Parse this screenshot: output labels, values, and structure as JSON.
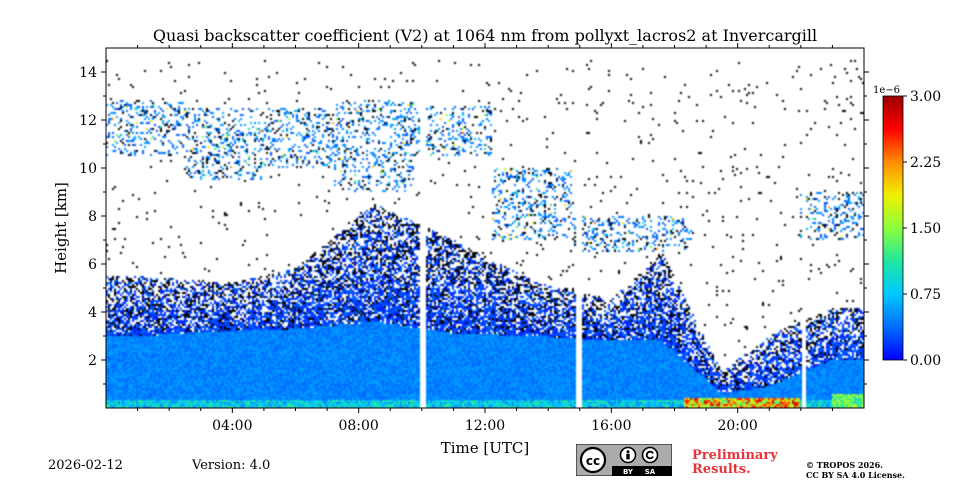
{
  "chart_data": {
    "type": "heatmap",
    "title": "Quasi backscatter coefficient (V2) at 1064 nm from pollyxt_lacros2 at Invercargill",
    "xlabel": "Time [UTC]",
    "ylabel": "Height [km]",
    "xlim": [
      0,
      24
    ],
    "ylim": [
      0,
      15
    ],
    "x_ticks": [
      4,
      8,
      12,
      16,
      20
    ],
    "x_tick_labels": [
      "04:00",
      "08:00",
      "12:00",
      "16:00",
      "20:00"
    ],
    "y_ticks": [
      2,
      4,
      6,
      8,
      10,
      12,
      14
    ],
    "y_tick_labels": [
      "2",
      "4",
      "6",
      "8",
      "10",
      "12",
      "14"
    ],
    "colorbar": {
      "vmin": 0.0,
      "vmax": 3.0,
      "exponent_label": "1e−6",
      "ticks": [
        0.0,
        0.75,
        1.5,
        2.25,
        3.0
      ],
      "tick_labels": [
        "0.00",
        "0.75",
        "1.50",
        "2.25",
        "3.00"
      ],
      "colors": [
        "#0000ff",
        "#006cff",
        "#00c8ff",
        "#22e6a0",
        "#8cff3c",
        "#f0f000",
        "#ff8c00",
        "#ff0000",
        "#990000"
      ]
    },
    "data_gaps_utc": [
      10.05,
      15.0,
      22.1
    ],
    "profile_summary": [
      {
        "time": 1,
        "boundary_layer_top_km": 3.0,
        "signal_top_km": 5.5,
        "cirrus_km": [
          10.5,
          12.8
        ]
      },
      {
        "time": 4,
        "boundary_layer_top_km": 3.2,
        "signal_top_km": 5.2,
        "cirrus_km": [
          9.5,
          12.5
        ]
      },
      {
        "time": 6,
        "boundary_layer_top_km": 3.3,
        "signal_top_km": 5.8,
        "cirrus_km": [
          10.0,
          12.5
        ]
      },
      {
        "time": 8.5,
        "boundary_layer_top_km": 3.6,
        "signal_top_km": 8.5,
        "cirrus_km": [
          9.0,
          12.8
        ]
      },
      {
        "time": 11,
        "boundary_layer_top_km": 3.1,
        "signal_top_km": 7.0,
        "cirrus_km": [
          10.5,
          12.6
        ]
      },
      {
        "time": 13.5,
        "boundary_layer_top_km": 3.0,
        "signal_top_km": 5.3,
        "cirrus_km": [
          7.0,
          10.0
        ]
      },
      {
        "time": 16,
        "boundary_layer_top_km": 2.8,
        "signal_top_km": 4.5,
        "cirrus_km": [
          6.5,
          8.0
        ]
      },
      {
        "time": 17.6,
        "boundary_layer_top_km": 2.8,
        "signal_top_km": 6.5,
        "cirrus_km": [
          6.5,
          8.0
        ]
      },
      {
        "time": 19.5,
        "boundary_layer_top_km": 0.6,
        "signal_top_km": 1.5,
        "cirrus_km": []
      },
      {
        "time": 21,
        "boundary_layer_top_km": 0.9,
        "signal_top_km": 3.0,
        "cirrus_km": []
      },
      {
        "time": 23,
        "boundary_layer_top_km": 2.0,
        "signal_top_km": 4.2,
        "cirrus_km": [
          7.0,
          9.0
        ]
      }
    ]
  },
  "footer": {
    "date": "2026-02-12",
    "version": "Version: 4.0",
    "prelim_line1": "Preliminary",
    "prelim_line2": "Results.",
    "license_line1": "© TROPOS 2026.",
    "license_line2": "CC BY SA 4.0 License.",
    "cc_badge": {
      "cc": "cc",
      "by": "BY",
      "sa": "SA"
    }
  }
}
